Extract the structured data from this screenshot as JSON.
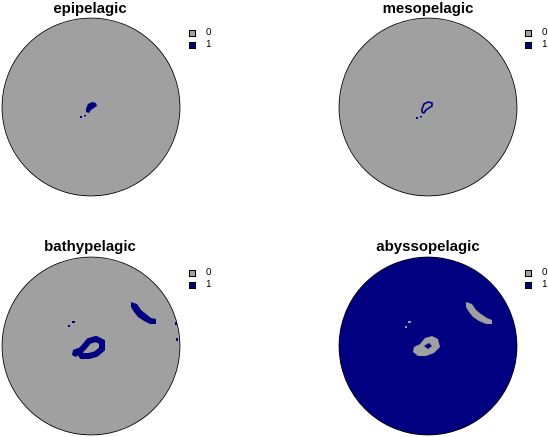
{
  "colors": {
    "class_0": "#a0a0a0",
    "class_1": "#000080",
    "outline": "#000000"
  },
  "legend": {
    "labels": [
      "0",
      "1"
    ]
  },
  "panels": [
    {
      "id": "epipelagic",
      "title": "epipelagic",
      "base_class": "0"
    },
    {
      "id": "mesopelagic",
      "title": "mesopelagic",
      "base_class": "0"
    },
    {
      "id": "bathypelagic",
      "title": "bathypelagic",
      "base_class": "0"
    },
    {
      "id": "abyssopelagic",
      "title": "abyssopelagic",
      "base_class": "1"
    }
  ]
}
